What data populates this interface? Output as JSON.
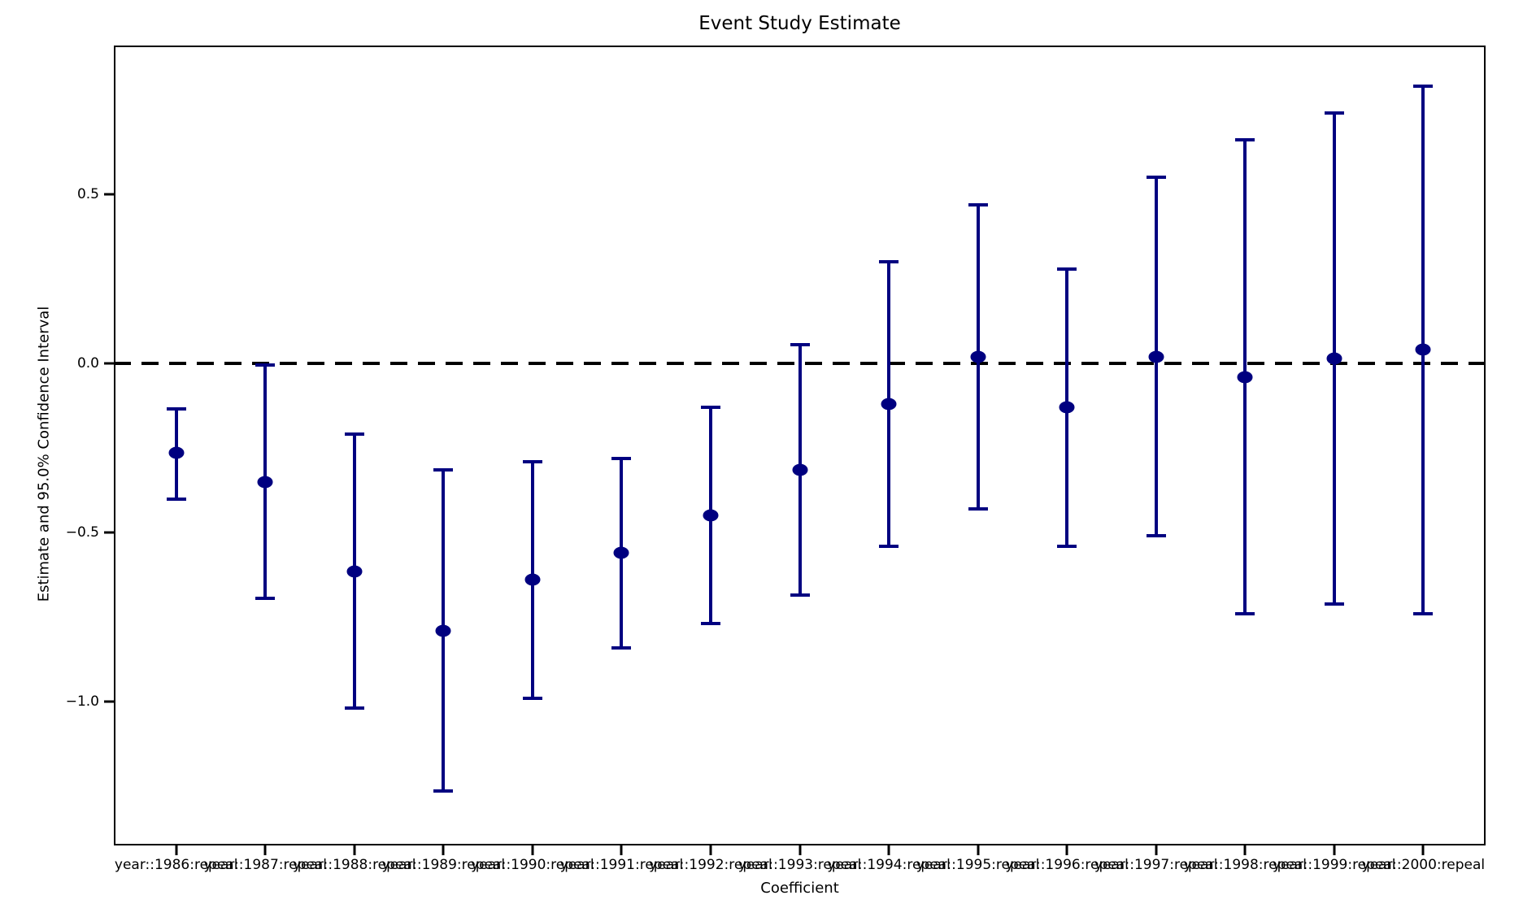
{
  "figure": {
    "title": "Event Study Estimate",
    "xlabel": "Coefficient",
    "ylabel": "Estimate and 95.0% Confidence Interval"
  },
  "chart_data": {
    "type": "scatter",
    "subtype": "errorbar-event-study",
    "title": "Event Study Estimate",
    "xlabel": "Coefficient",
    "ylabel": "Estimate and 95.0% Confidence Interval",
    "categories": [
      "year::1986:repeal",
      "year::1987:repeal",
      "year::1988:repeal",
      "year::1989:repeal",
      "year::1990:repeal",
      "year::1991:repeal",
      "year::1992:repeal",
      "year::1993:repeal",
      "year::1994:repeal",
      "year::1995:repeal",
      "year::1996:repeal",
      "year::1997:repeal",
      "year::1998:repeal",
      "year::1999:repeal",
      "year::2000:repeal"
    ],
    "series": [
      {
        "name": "estimate",
        "values": [
          -0.265,
          -0.35,
          -0.615,
          -0.79,
          -0.64,
          -0.56,
          -0.45,
          -0.315,
          -0.12,
          0.02,
          -0.13,
          0.02,
          -0.04,
          0.015,
          0.04
        ],
        "ci_low": [
          -0.4,
          -0.695,
          -1.02,
          -1.265,
          -0.99,
          -0.84,
          -0.77,
          -0.685,
          -0.54,
          -0.43,
          -0.54,
          -0.51,
          -0.74,
          -0.71,
          -0.74
        ],
        "ci_high": [
          -0.135,
          -0.005,
          -0.21,
          -0.315,
          -0.29,
          -0.28,
          -0.13,
          0.055,
          0.3,
          0.47,
          0.28,
          0.55,
          0.66,
          0.74,
          0.82
        ]
      }
    ],
    "reference_line_y": 0.0,
    "ylim": [
      -1.425,
      0.94
    ],
    "yticks": [
      0.5,
      0.0,
      -0.5,
      -1.0
    ],
    "ytick_labels": [
      "0.5",
      "0.0",
      "−0.5",
      "−1.0"
    ],
    "grid": false,
    "legend_position": "none",
    "marker_color": "#000080",
    "errorbar_color": "#000080",
    "zero_line_color": "#000000"
  }
}
